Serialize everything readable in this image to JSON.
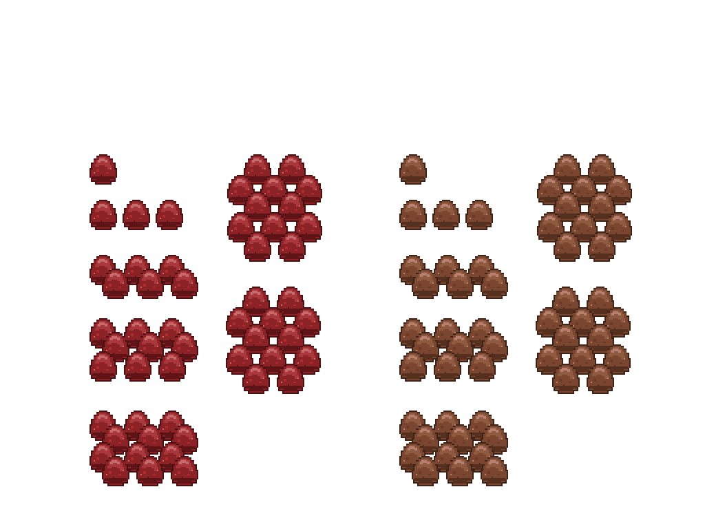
{
  "sheet": {
    "palettes": [
      {
        "name": "red",
        "colors": {
          "outline": "#4a1012",
          "base": "#8a2226",
          "mid": "#a8383c",
          "light": "#c86a6c",
          "shadow": "#5e1416",
          "speck": "#b02a2e"
        }
      },
      {
        "name": "brown",
        "colors": {
          "outline": "#3e2418",
          "base": "#7a4630",
          "mid": "#8e5a40",
          "light": "#b88070",
          "shadow": "#56301e",
          "speck": "#6a3a26"
        }
      }
    ],
    "clusters": [
      {
        "id": "single",
        "count": 1
      },
      {
        "id": "row-of-three",
        "count": 3
      },
      {
        "id": "staggered-six",
        "count": 6
      },
      {
        "id": "stacked-nine",
        "count": 9
      },
      {
        "id": "stacked-twelve",
        "count": 12
      },
      {
        "id": "ring-pile",
        "count": 12
      },
      {
        "id": "dense-pile",
        "count": 12
      }
    ]
  }
}
